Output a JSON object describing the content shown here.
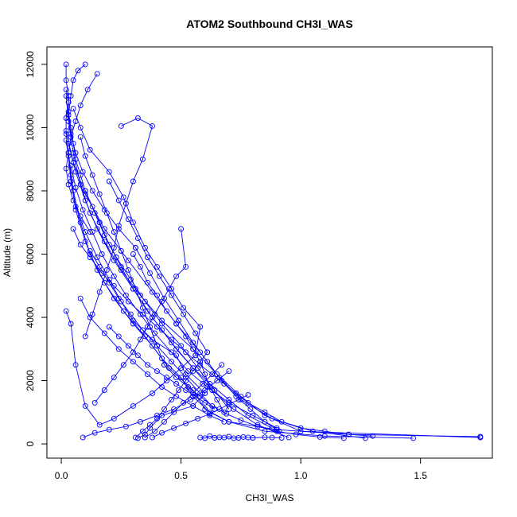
{
  "chart_data": {
    "type": "scatter",
    "title": "ATOM2 Southbound CH3I_WAS",
    "xlabel": "CH3I_WAS",
    "ylabel": "Altitude (m)",
    "xlim": [
      -0.06,
      1.8
    ],
    "ylim": [
      -450,
      12550
    ],
    "x_ticks": [
      0.0,
      0.5,
      1.0,
      1.5
    ],
    "x_tick_labels": [
      "0.0",
      "0.5",
      "1.0",
      "1.5"
    ],
    "y_ticks": [
      0,
      2000,
      4000,
      6000,
      8000,
      10000,
      12000
    ],
    "y_tick_labels": [
      "0",
      "2000",
      "4000",
      "6000",
      "8000",
      "10000",
      "12000"
    ],
    "grid": false,
    "legend": "none",
    "color": "#0000ff",
    "series": [
      {
        "x": [
          0.32,
          0.35,
          0.37,
          0.42,
          0.55,
          0.6,
          0.52,
          0.48,
          0.38,
          0.3,
          0.25,
          0.2,
          0.15,
          0.1,
          0.06,
          0.04,
          0.03,
          0.02,
          0.02,
          0.03,
          0.02
        ],
        "y": [
          180,
          300,
          500,
          900,
          1200,
          1600,
          2200,
          2800,
          3300,
          3900,
          4500,
          5200,
          5900,
          6700,
          7500,
          8300,
          9100,
          9800,
          10300,
          10800,
          11200
        ]
      },
      {
        "x": [
          0.02,
          0.03,
          0.05,
          0.08,
          0.12,
          0.18,
          0.25,
          0.33,
          0.42,
          0.55,
          0.65,
          0.75,
          0.85,
          1.0,
          1.75
        ],
        "y": [
          11000,
          10200,
          9200,
          8200,
          7300,
          6400,
          5500,
          4700,
          3900,
          3000,
          2200,
          1500,
          900,
          400,
          200
        ]
      },
      {
        "x": [
          1.75,
          1.2,
          0.9,
          0.7,
          0.6,
          0.55,
          0.45,
          0.38,
          0.3,
          0.22,
          0.15,
          0.1,
          0.06,
          0.04,
          0.02
        ],
        "y": [
          230,
          300,
          450,
          700,
          1100,
          1700,
          2400,
          3100,
          3800,
          4600,
          5500,
          6400,
          7400,
          8500,
          9600
        ]
      },
      {
        "x": [
          0.02,
          0.05,
          0.1,
          0.18,
          0.28,
          0.38,
          0.48,
          0.58,
          0.66,
          0.75,
          0.88,
          1.05,
          1.27
        ],
        "y": [
          9900,
          8900,
          7900,
          6800,
          5800,
          4800,
          3800,
          2900,
          2100,
          1400,
          800,
          400,
          180
        ]
      },
      {
        "x": [
          1.47,
          1.1,
          0.85,
          0.7,
          0.62,
          0.55,
          0.5,
          0.42,
          0.35,
          0.26,
          0.18,
          0.12,
          0.08,
          0.05,
          0.03
        ],
        "y": [
          180,
          250,
          400,
          700,
          1000,
          1500,
          2100,
          2700,
          3400,
          4200,
          5100,
          6000,
          7000,
          8000,
          9200
        ]
      },
      {
        "x": [
          0.03,
          0.06,
          0.1,
          0.15,
          0.22,
          0.3,
          0.38,
          0.46,
          0.55,
          0.63,
          0.72,
          0.82,
          0.95
        ],
        "y": [
          9500,
          8600,
          7700,
          6800,
          5800,
          4900,
          4000,
          3200,
          2400,
          1700,
          1100,
          600,
          200
        ]
      },
      {
        "x": [
          0.05,
          0.08,
          0.12,
          0.2,
          0.26,
          0.3,
          0.35,
          0.4,
          0.46,
          0.51,
          0.58,
          0.56
        ],
        "y": [
          10600,
          10000,
          9300,
          8600,
          7800,
          7000,
          6200,
          5600,
          4900,
          4300,
          3700,
          2800
        ]
      },
      {
        "x": [
          0.56,
          0.5,
          0.44,
          0.38,
          0.3,
          0.22,
          0.16,
          0.1,
          0.06,
          0.04,
          0.02
        ],
        "y": [
          2800,
          2400,
          2000,
          1600,
          1200,
          800,
          600,
          1200,
          2500,
          3800,
          4200
        ]
      },
      {
        "x": [
          0.1,
          0.14,
          0.18,
          0.23,
          0.29,
          0.35,
          0.42,
          0.5,
          0.57,
          0.64,
          0.7
        ],
        "y": [
          8000,
          7300,
          6600,
          5900,
          5200,
          4500,
          3800,
          3100,
          2400,
          1700,
          1100
        ]
      },
      {
        "x": [
          0.7,
          0.65,
          0.6,
          0.54,
          0.47,
          0.4,
          0.33,
          0.27,
          0.2,
          0.14,
          0.09
        ],
        "y": [
          2300,
          2000,
          1700,
          1400,
          1100,
          900,
          700,
          550,
          450,
          350,
          200
        ]
      },
      {
        "x": [
          0.25,
          0.32,
          0.38,
          0.34,
          0.3,
          0.27,
          0.24,
          0.22,
          0.19,
          0.16,
          0.13,
          0.1
        ],
        "y": [
          10050,
          10300,
          10050,
          9000,
          8300,
          7600,
          6900,
          6200,
          5500,
          4800,
          4100,
          3400
        ]
      },
      {
        "x": [
          0.12,
          0.16,
          0.2,
          0.24,
          0.29,
          0.34,
          0.4,
          0.46,
          0.52,
          0.58,
          0.64
        ],
        "y": [
          6100,
          5600,
          5100,
          4600,
          4100,
          3600,
          3100,
          2600,
          2100,
          1600,
          1100
        ]
      },
      {
        "x": [
          0.64,
          0.6,
          0.56,
          0.52,
          0.48,
          0.44,
          0.4,
          0.36,
          0.32,
          0.28,
          0.24,
          0.2
        ],
        "y": [
          1100,
          1300,
          1500,
          1700,
          1900,
          2100,
          2300,
          2500,
          2800,
          3100,
          3400,
          3700
        ]
      },
      {
        "x": [
          0.05,
          0.08,
          0.12,
          0.17,
          0.22,
          0.28,
          0.34,
          0.4,
          0.46,
          0.52,
          0.58,
          0.63,
          0.68,
          0.73,
          0.78,
          0.85,
          0.92,
          1.0,
          1.1,
          1.2,
          1.3
        ],
        "y": [
          6800,
          6300,
          5900,
          5400,
          5000,
          4500,
          4100,
          3700,
          3300,
          2900,
          2500,
          2200,
          1900,
          1600,
          1300,
          1000,
          700,
          500,
          400,
          300,
          250
        ]
      },
      {
        "x": [
          0.15,
          0.11,
          0.08,
          0.06,
          0.04,
          0.03,
          0.02,
          0.03,
          0.05,
          0.08,
          0.12
        ],
        "y": [
          11700,
          11200,
          10700,
          10200,
          9700,
          9200,
          8700,
          8200,
          7700,
          7200,
          6700
        ]
      },
      {
        "x": [
          0.3,
          0.33,
          0.36,
          0.4,
          0.44,
          0.48,
          0.52,
          0.55,
          0.58,
          0.6,
          0.62,
          0.65,
          0.68
        ],
        "y": [
          6000,
          5600,
          5100,
          4700,
          4200,
          3800,
          3400,
          3000,
          2600,
          2200,
          1800,
          1400,
          1000
        ]
      },
      {
        "x": [
          0.68,
          0.62,
          0.55,
          0.48,
          0.42,
          0.36,
          0.3,
          0.24,
          0.18,
          0.12,
          0.08
        ],
        "y": [
          700,
          900,
          1200,
          1500,
          1800,
          2200,
          2600,
          3000,
          3500,
          4000,
          4600
        ]
      },
      {
        "x": [
          0.08,
          0.1,
          0.13,
          0.16,
          0.19,
          0.22,
          0.25,
          0.28,
          0.31,
          0.34,
          0.37,
          0.4,
          0.43
        ],
        "y": [
          9700,
          9100,
          8500,
          7900,
          7300,
          6700,
          6100,
          5500,
          4900,
          4300,
          3700,
          3100,
          2500
        ]
      },
      {
        "x": [
          0.43,
          0.48,
          0.53,
          0.58,
          0.63,
          0.69,
          0.75,
          0.82,
          0.9,
          0.98,
          1.08,
          1.18
        ],
        "y": [
          2500,
          2100,
          1800,
          1500,
          1200,
          950,
          750,
          550,
          400,
          300,
          220,
          180
        ]
      },
      {
        "x": [
          0.02,
          0.02,
          0.03,
          0.03,
          0.04,
          0.05,
          0.06,
          0.08,
          0.1,
          0.13,
          0.16
        ],
        "y": [
          12000,
          11500,
          11000,
          10500,
          10000,
          9500,
          9000,
          8500,
          8000,
          7500,
          7000
        ]
      },
      {
        "x": [
          0.16,
          0.2,
          0.25,
          0.3,
          0.36,
          0.42,
          0.48,
          0.55,
          0.62,
          0.7,
          0.78,
          0.88
        ],
        "y": [
          7000,
          6300,
          5600,
          4900,
          4200,
          3600,
          3000,
          2400,
          1900,
          1400,
          900,
          500
        ]
      },
      {
        "x": [
          0.5,
          0.52,
          0.48,
          0.45,
          0.42,
          0.39,
          0.36,
          0.33,
          0.3,
          0.26,
          0.22,
          0.18,
          0.14
        ],
        "y": [
          6800,
          5600,
          5300,
          4900,
          4500,
          4100,
          3700,
          3300,
          2900,
          2500,
          2100,
          1700,
          1300
        ]
      },
      {
        "x": [
          0.1,
          0.07,
          0.05,
          0.04,
          0.03,
          0.04,
          0.06,
          0.09,
          0.13,
          0.18,
          0.24,
          0.31
        ],
        "y": [
          12000,
          11800,
          11500,
          11000,
          10400,
          9800,
          9200,
          8600,
          8000,
          7400,
          6800,
          6200
        ]
      },
      {
        "x": [
          0.31,
          0.37,
          0.43,
          0.49,
          0.55,
          0.61,
          0.67,
          0.73,
          0.79,
          0.85,
          0.91
        ],
        "y": [
          6200,
          5400,
          4600,
          3900,
          3200,
          2600,
          2000,
          1500,
          1100,
          700,
          400
        ]
      },
      {
        "x": [
          0.2,
          0.24,
          0.28,
          0.32,
          0.36,
          0.41,
          0.46,
          0.51,
          0.56,
          0.61
        ],
        "y": [
          8300,
          7700,
          7100,
          6500,
          5900,
          5300,
          4700,
          4100,
          3500,
          2900
        ]
      },
      {
        "x": [
          0.61,
          0.58,
          0.55,
          0.52,
          0.49,
          0.46,
          0.43,
          0.4,
          0.37,
          0.34,
          0.31
        ],
        "y": [
          2900,
          2600,
          2300,
          2000,
          1700,
          1400,
          1100,
          800,
          600,
          400,
          200
        ]
      },
      {
        "x": [
          0.04,
          0.06,
          0.09,
          0.13,
          0.17,
          0.22,
          0.27,
          0.33,
          0.39,
          0.46,
          0.53,
          0.61,
          0.7,
          0.8,
          0.9
        ],
        "y": [
          8800,
          8100,
          7400,
          6700,
          6000,
          5300,
          4700,
          4100,
          3500,
          2900,
          2300,
          1800,
          1300,
          900,
          500
        ]
      },
      {
        "x": [
          0.35,
          0.39,
          0.43,
          0.47,
          0.51,
          0.55,
          0.59,
          0.63,
          0.67
        ],
        "y": [
          200,
          400,
          700,
          1000,
          1300,
          1600,
          1900,
          2200,
          2500
        ]
      },
      {
        "x": [
          0.38,
          0.42,
          0.47,
          0.52,
          0.57,
          0.62,
          0.66,
          0.7,
          0.74,
          0.78
        ],
        "y": [
          200,
          350,
          500,
          650,
          800,
          950,
          1100,
          1250,
          1400,
          1550
        ]
      },
      {
        "x": [
          0.58,
          0.6,
          0.62,
          0.64,
          0.66,
          0.68,
          0.7,
          0.72,
          0.74,
          0.76,
          0.78,
          0.8,
          0.85,
          0.88,
          0.92
        ],
        "y": [
          200,
          180,
          250,
          190,
          210,
          200,
          230,
          180,
          190,
          220,
          200,
          190,
          210,
          200,
          190
        ]
      }
    ]
  }
}
